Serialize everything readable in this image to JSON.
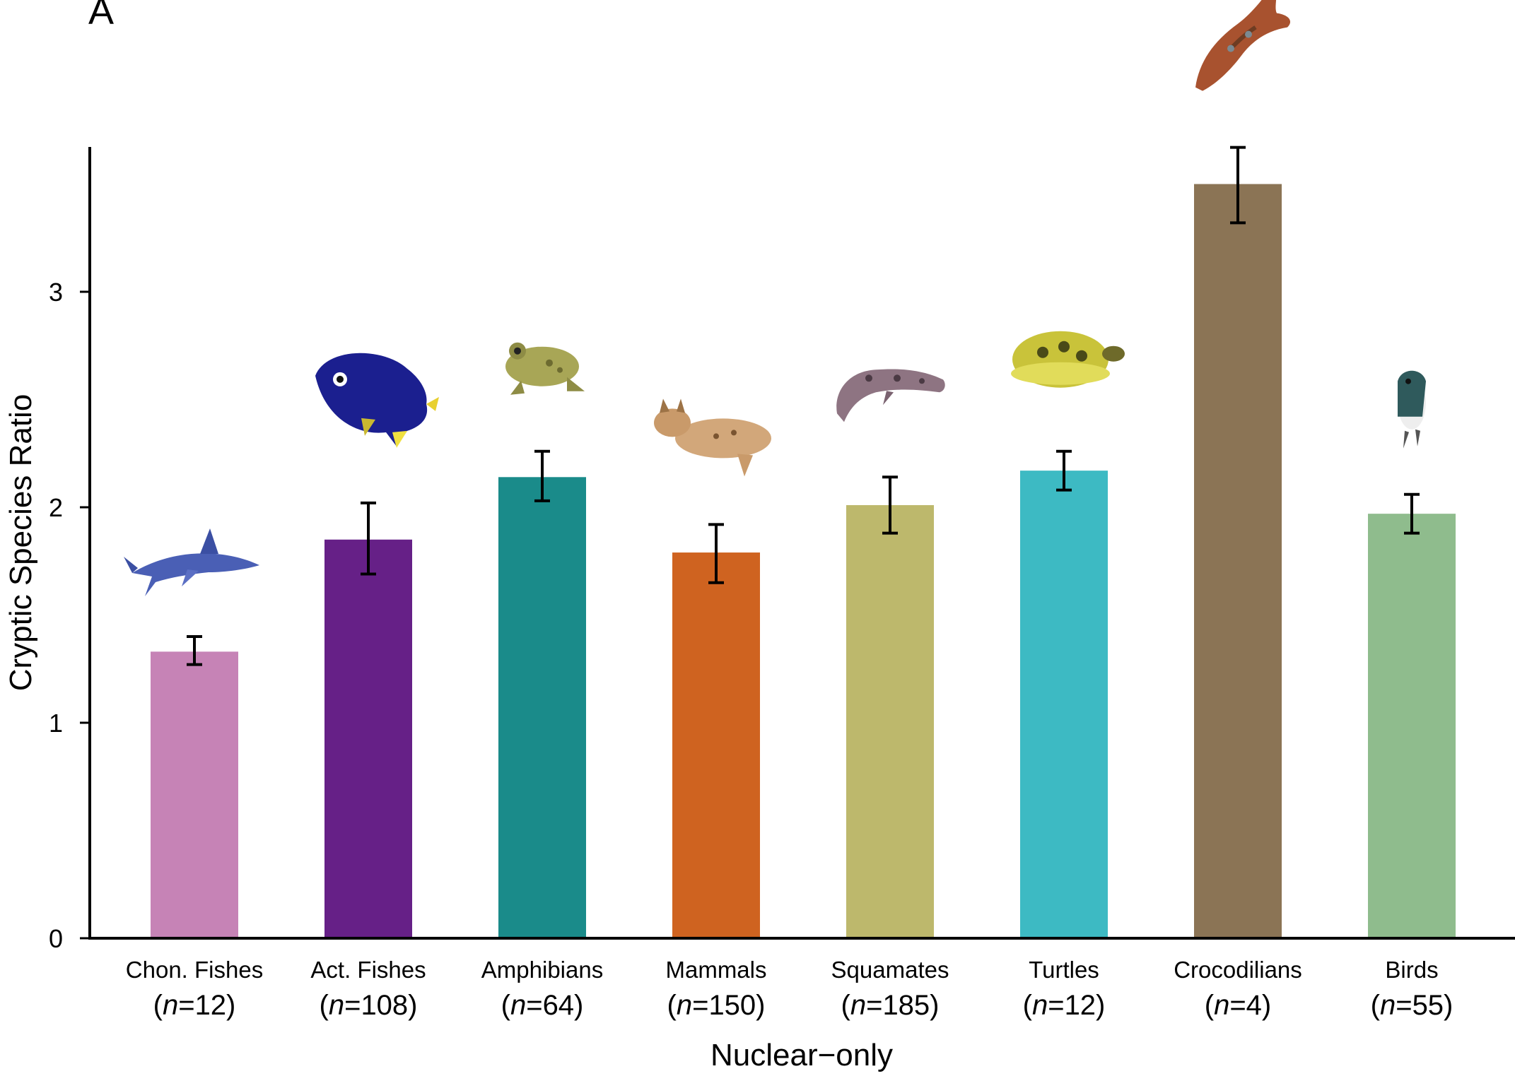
{
  "panel_label": "A",
  "chart_data": {
    "type": "bar",
    "title": "",
    "xlabel": "Nuclear−only",
    "ylabel": "Cryptic Species Ratio",
    "ylim": [
      0,
      3.7
    ],
    "yticks": [
      0,
      1,
      2,
      3
    ],
    "ytick_labels": [
      "0",
      "1",
      "2",
      "3"
    ],
    "categories": [
      "Chon. Fishes",
      "Act. Fishes",
      "Amphibians",
      "Mammals",
      "Squamates",
      "Turtles",
      "Crocodilians",
      "Birds"
    ],
    "n_labels": [
      "12",
      "108",
      "64",
      "150",
      "185",
      "12",
      "4",
      "55"
    ],
    "n_prefix": "n",
    "values": [
      1.33,
      1.85,
      2.14,
      1.79,
      2.01,
      2.17,
      3.5,
      1.97
    ],
    "error_low": [
      1.27,
      1.69,
      2.03,
      1.65,
      1.88,
      2.08,
      3.32,
      1.88
    ],
    "error_high": [
      1.4,
      2.02,
      2.26,
      1.92,
      2.14,
      2.26,
      3.67,
      2.06
    ],
    "colors": [
      "#c683b6",
      "#662087",
      "#1a8b8a",
      "#cf6320",
      "#bdb86c",
      "#3dbac3",
      "#8b7455",
      "#8fbc8d"
    ],
    "icons": [
      "shark-icon",
      "angelfish-icon",
      "frog-icon",
      "bobcat-icon",
      "gila-monster-icon",
      "tortoise-icon",
      "crocodile-icon",
      "swallow-icon"
    ]
  }
}
